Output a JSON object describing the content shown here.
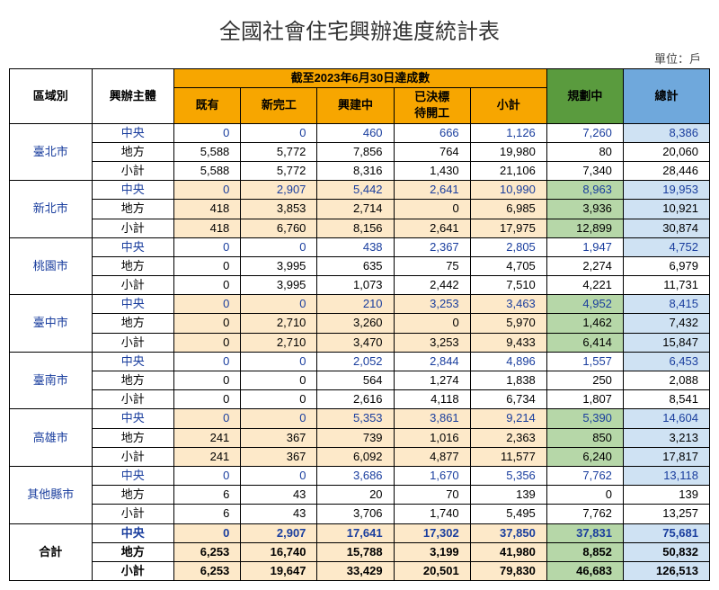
{
  "title": "全國社會住宅興辦進度統計表",
  "unit_label": "單位：戶",
  "columns": {
    "region": "區域別",
    "entity": "興辦主體",
    "group_title": "截至2023年6月30日達成數",
    "existing": "既有",
    "new_completed": "新完工",
    "under_construction": "興建中",
    "awarded_pending": "已決標\n待開工",
    "subtotal": "小計",
    "planning": "規劃中",
    "total": "總計"
  },
  "entity_labels": {
    "central": "中央",
    "local": "地方",
    "sub": "小計"
  },
  "table_style": {
    "type": "table",
    "header_orange": "#f7a600",
    "header_green": "#5a9b3e",
    "header_blue": "#6fa8dc",
    "cream": "#fde9c9",
    "green_light": "#b6d7a8",
    "blue_light": "#cfe2f3",
    "central_text_color": "#1a3e9e",
    "border_color": "#000000",
    "font_size_pt": 10,
    "title_font_size_pt": 18
  },
  "regions": [
    {
      "name": "臺北市",
      "highlight": "none",
      "rows": [
        {
          "entity": "central",
          "vals": [
            "0",
            "0",
            "460",
            "666",
            "1,126",
            "7,260",
            "8,386"
          ]
        },
        {
          "entity": "local",
          "vals": [
            "5,588",
            "5,772",
            "7,856",
            "764",
            "19,980",
            "80",
            "20,060"
          ]
        },
        {
          "entity": "sub",
          "vals": [
            "5,588",
            "5,772",
            "8,316",
            "1,430",
            "21,106",
            "7,340",
            "28,446"
          ]
        }
      ]
    },
    {
      "name": "新北市",
      "highlight": "full",
      "rows": [
        {
          "entity": "central",
          "vals": [
            "0",
            "2,907",
            "5,442",
            "2,641",
            "10,990",
            "8,963",
            "19,953"
          ]
        },
        {
          "entity": "local",
          "vals": [
            "418",
            "3,853",
            "2,714",
            "0",
            "6,985",
            "3,936",
            "10,921"
          ]
        },
        {
          "entity": "sub",
          "vals": [
            "418",
            "6,760",
            "8,156",
            "2,641",
            "17,975",
            "12,899",
            "30,874"
          ]
        }
      ]
    },
    {
      "name": "桃園市",
      "highlight": "none",
      "rows": [
        {
          "entity": "central",
          "vals": [
            "0",
            "0",
            "438",
            "2,367",
            "2,805",
            "1,947",
            "4,752"
          ]
        },
        {
          "entity": "local",
          "vals": [
            "0",
            "3,995",
            "635",
            "75",
            "4,705",
            "2,274",
            "6,979"
          ]
        },
        {
          "entity": "sub",
          "vals": [
            "0",
            "3,995",
            "1,073",
            "2,442",
            "7,510",
            "4,221",
            "11,731"
          ]
        }
      ]
    },
    {
      "name": "臺中市",
      "highlight": "full",
      "rows": [
        {
          "entity": "central",
          "vals": [
            "0",
            "0",
            "210",
            "3,253",
            "3,463",
            "4,952",
            "8,415"
          ]
        },
        {
          "entity": "local",
          "vals": [
            "0",
            "2,710",
            "3,260",
            "0",
            "5,970",
            "1,462",
            "7,432"
          ]
        },
        {
          "entity": "sub",
          "vals": [
            "0",
            "2,710",
            "3,470",
            "3,253",
            "9,433",
            "6,414",
            "15,847"
          ]
        }
      ]
    },
    {
      "name": "臺南市",
      "highlight": "none",
      "rows": [
        {
          "entity": "central",
          "vals": [
            "0",
            "0",
            "2,052",
            "2,844",
            "4,896",
            "1,557",
            "6,453"
          ]
        },
        {
          "entity": "local",
          "vals": [
            "0",
            "0",
            "564",
            "1,274",
            "1,838",
            "250",
            "2,088"
          ]
        },
        {
          "entity": "sub",
          "vals": [
            "0",
            "0",
            "2,616",
            "4,118",
            "6,734",
            "1,807",
            "8,541"
          ]
        }
      ]
    },
    {
      "name": "高雄市",
      "highlight": "full",
      "rows": [
        {
          "entity": "central",
          "vals": [
            "0",
            "0",
            "5,353",
            "3,861",
            "9,214",
            "5,390",
            "14,604"
          ]
        },
        {
          "entity": "local",
          "vals": [
            "241",
            "367",
            "739",
            "1,016",
            "2,363",
            "850",
            "3,213"
          ]
        },
        {
          "entity": "sub",
          "vals": [
            "241",
            "367",
            "6,092",
            "4,877",
            "11,577",
            "6,240",
            "17,817"
          ]
        }
      ]
    },
    {
      "name": "其他縣市",
      "highlight": "none",
      "rows": [
        {
          "entity": "central",
          "vals": [
            "0",
            "0",
            "3,686",
            "1,670",
            "5,356",
            "7,762",
            "13,118"
          ]
        },
        {
          "entity": "local",
          "vals": [
            "6",
            "43",
            "20",
            "70",
            "139",
            "0",
            "139"
          ]
        },
        {
          "entity": "sub",
          "vals": [
            "6",
            "43",
            "3,706",
            "1,740",
            "5,495",
            "7,762",
            "13,257"
          ]
        }
      ]
    }
  ],
  "totals": {
    "name": "合計",
    "rows": [
      {
        "entity": "central",
        "vals": [
          "0",
          "2,907",
          "17,641",
          "17,302",
          "37,850",
          "37,831",
          "75,681"
        ]
      },
      {
        "entity": "local",
        "vals": [
          "6,253",
          "16,740",
          "15,788",
          "3,199",
          "41,980",
          "8,852",
          "50,832"
        ]
      },
      {
        "entity": "sub",
        "vals": [
          "6,253",
          "19,647",
          "33,429",
          "20,501",
          "79,830",
          "46,683",
          "126,513"
        ]
      }
    ]
  }
}
